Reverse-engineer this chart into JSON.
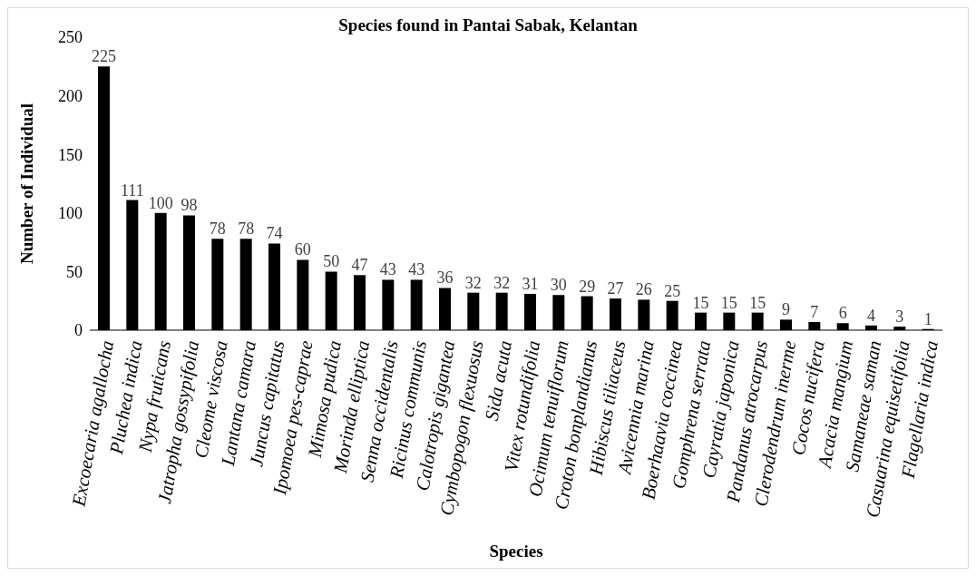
{
  "chart_data": {
    "type": "bar",
    "title": "Species found in Pantai Sabak, Kelantan",
    "xlabel": "Species",
    "ylabel": "Number of Individual",
    "categories": [
      "Excoecaria agallocha",
      "Pluchea indica",
      "Nypa fruticans",
      "Jatropha gossypifolia",
      "Cleome viscosa",
      "Lantana camara",
      "Juncus capitatus",
      "Ipomoea pes-caprae",
      "Mimosa pudica",
      "Morinda elliptica",
      "Senna occidentalis",
      "Ricinus communis",
      "Calotropis gigantea",
      "Cymbopogon flexuosus",
      "Sida acuta",
      "Vitex rotundifolia",
      "Ocimum tenuiflorum",
      "Croton bonplandianus",
      "Hibiscus tiliaceus",
      "Avicennia marina",
      "Boerhaavia coccinea",
      "Gomphrena serrata",
      "Cayratia japonica",
      "Pandanus atrocarpus",
      "Clerodendrum inerme",
      "Cocos nucifera",
      "Acacia mangium",
      "Samaneae saman",
      "Casuarina equisetifolia",
      "Flagellaria indica"
    ],
    "values": [
      225,
      111,
      100,
      98,
      78,
      78,
      74,
      60,
      50,
      47,
      43,
      43,
      36,
      32,
      32,
      31,
      30,
      29,
      27,
      26,
      25,
      15,
      15,
      15,
      9,
      7,
      6,
      4,
      3,
      1
    ],
    "color": "#000000",
    "ylim": [
      0,
      250
    ],
    "yticks": [
      0,
      50,
      100,
      150,
      200,
      250
    ],
    "data_labels": true
  }
}
